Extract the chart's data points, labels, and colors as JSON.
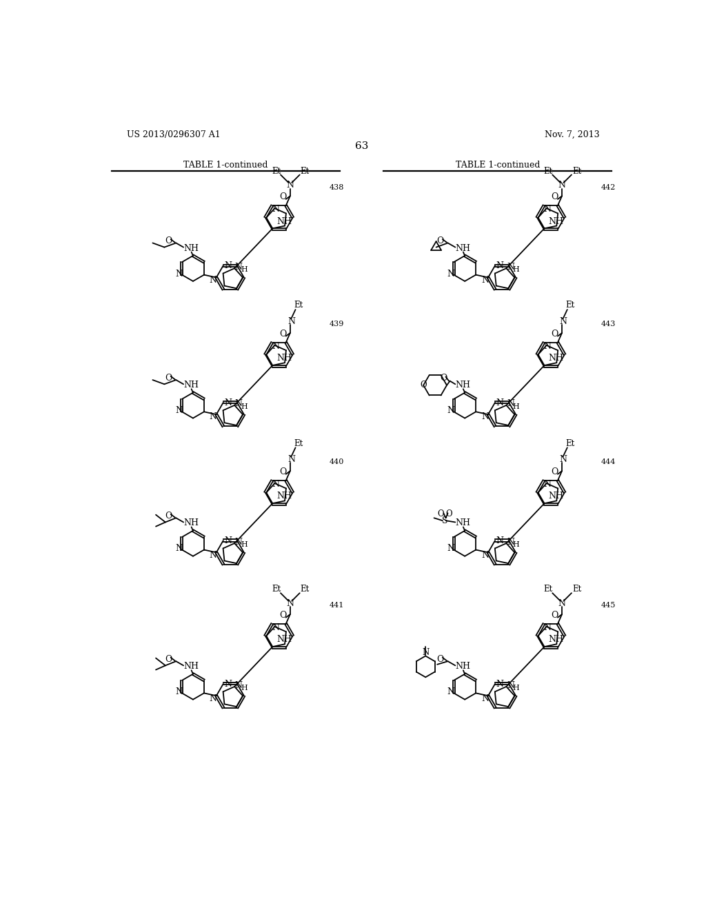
{
  "page_number": "63",
  "patent_number": "US 2013/0296307 A1",
  "patent_date": "Nov. 7, 2013",
  "table_title": "TABLE 1-continued",
  "background_color": "#ffffff",
  "compounds": [
    {
      "number": "438",
      "col": 0,
      "row": 0
    },
    {
      "number": "439",
      "col": 0,
      "row": 1
    },
    {
      "number": "440",
      "col": 0,
      "row": 2
    },
    {
      "number": "441",
      "col": 0,
      "row": 3
    },
    {
      "number": "442",
      "col": 1,
      "row": 0
    },
    {
      "number": "443",
      "col": 1,
      "row": 1
    },
    {
      "number": "444",
      "col": 1,
      "row": 2
    },
    {
      "number": "445",
      "col": 1,
      "row": 3
    }
  ]
}
